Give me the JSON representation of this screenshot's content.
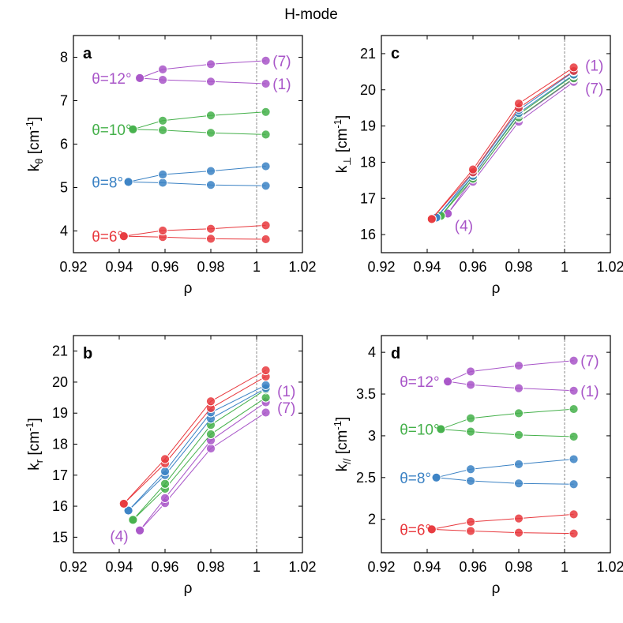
{
  "title": "H-mode",
  "colors": {
    "theta6": "#e8383d",
    "theta8": "#3b82c4",
    "theta10": "#44b04a",
    "theta12": "#a855c8",
    "axis": "#000000",
    "ref_line": "#888888"
  },
  "chart_data": [
    {
      "panel": "a",
      "type": "line",
      "xlabel": "ρ",
      "ylabel_main": "k",
      "ylabel_sub": "θ",
      "ylabel_tail": " [cm",
      "ylabel_sup": "-1",
      "ylabel_end": "]",
      "xlim": [
        0.92,
        1.02
      ],
      "ylim": [
        3.5,
        8.5
      ],
      "xticks": [
        0.92,
        0.94,
        0.96,
        0.98,
        1,
        1.02
      ],
      "xtick_labels": [
        "0.92",
        "0.94",
        "0.96",
        "0.98",
        "1",
        "1.02"
      ],
      "yticks": [
        4,
        5,
        6,
        7,
        8
      ],
      "ytick_labels": [
        "4",
        "5",
        "6",
        "7",
        "8"
      ],
      "ref_x": 1.0,
      "series": [
        {
          "name": "θ=6° (1)",
          "color": "theta6",
          "x": [
            0.942,
            0.959,
            0.98,
            1.004
          ],
          "y": [
            3.88,
            3.86,
            3.82,
            3.81
          ]
        },
        {
          "name": "θ=6° (7)",
          "color": "theta6",
          "x": [
            0.942,
            0.959,
            0.98,
            1.004
          ],
          "y": [
            3.88,
            4.01,
            4.05,
            4.13
          ]
        },
        {
          "name": "θ=8° (1)",
          "color": "theta8",
          "x": [
            0.944,
            0.959,
            0.98,
            1.004
          ],
          "y": [
            5.13,
            5.11,
            5.06,
            5.04
          ]
        },
        {
          "name": "θ=8° (7)",
          "color": "theta8",
          "x": [
            0.944,
            0.959,
            0.98,
            1.004
          ],
          "y": [
            5.13,
            5.3,
            5.38,
            5.49
          ]
        },
        {
          "name": "θ=10° (1)",
          "color": "theta10",
          "x": [
            0.946,
            0.959,
            0.98,
            1.004
          ],
          "y": [
            6.34,
            6.32,
            6.26,
            6.22
          ]
        },
        {
          "name": "θ=10° (7)",
          "color": "theta10",
          "x": [
            0.946,
            0.959,
            0.98,
            1.004
          ],
          "y": [
            6.34,
            6.54,
            6.66,
            6.74
          ]
        },
        {
          "name": "θ=12° (1)",
          "color": "theta12",
          "x": [
            0.949,
            0.959,
            0.98,
            1.004
          ],
          "y": [
            7.52,
            7.48,
            7.44,
            7.39
          ]
        },
        {
          "name": "θ=12° (7)",
          "color": "theta12",
          "x": [
            0.949,
            0.959,
            0.98,
            1.004
          ],
          "y": [
            7.52,
            7.72,
            7.84,
            7.92
          ]
        }
      ],
      "annotations": [
        {
          "text": "θ=6°",
          "color": "theta6",
          "at": [
            0.928,
            3.88
          ],
          "anchor": "start"
        },
        {
          "text": "θ=8°",
          "color": "theta8",
          "at": [
            0.928,
            5.13
          ],
          "anchor": "start"
        },
        {
          "text": "θ=10°",
          "color": "theta10",
          "at": [
            0.928,
            6.34
          ],
          "anchor": "start"
        },
        {
          "text": "θ=12°",
          "color": "theta12",
          "at": [
            0.928,
            7.52
          ],
          "anchor": "start"
        },
        {
          "text": "(7)",
          "color": "theta12",
          "at": [
            1.007,
            7.92
          ],
          "anchor": "start"
        },
        {
          "text": "(1)",
          "color": "theta12",
          "at": [
            1.007,
            7.39
          ],
          "anchor": "start"
        }
      ]
    },
    {
      "panel": "c",
      "type": "line",
      "xlabel": "ρ",
      "ylabel_main": "k",
      "ylabel_sub": "⊥",
      "ylabel_tail": " [cm",
      "ylabel_sup": "-1",
      "ylabel_end": "]",
      "xlim": [
        0.92,
        1.02
      ],
      "ylim": [
        15.5,
        21.5
      ],
      "xticks": [
        0.92,
        0.94,
        0.96,
        0.98,
        1,
        1.02
      ],
      "xtick_labels": [
        "0.92",
        "0.94",
        "0.96",
        "0.98",
        "1",
        "1.02"
      ],
      "yticks": [
        16,
        17,
        18,
        19,
        20,
        21
      ],
      "ytick_labels": [
        "16",
        "17",
        "18",
        "19",
        "20",
        "21"
      ],
      "ref_x": 1.0,
      "series": [
        {
          "name": "θ=12° (7)",
          "color": "theta12",
          "x": [
            0.949,
            0.96,
            0.98,
            1.004
          ],
          "y": [
            16.58,
            17.46,
            19.12,
            20.22
          ]
        },
        {
          "name": "θ=12° (1)",
          "color": "theta12",
          "x": [
            0.949,
            0.96,
            0.98,
            1.004
          ],
          "y": [
            16.58,
            17.56,
            19.22,
            20.3
          ]
        },
        {
          "name": "θ=10° (7)",
          "color": "theta10",
          "x": [
            0.946,
            0.96,
            0.98,
            1.004
          ],
          "y": [
            16.52,
            17.54,
            19.24,
            20.32
          ]
        },
        {
          "name": "θ=10° (1)",
          "color": "theta10",
          "x": [
            0.946,
            0.96,
            0.98,
            1.004
          ],
          "y": [
            16.52,
            17.62,
            19.32,
            20.4
          ]
        },
        {
          "name": "θ=8° (7)",
          "color": "theta8",
          "x": [
            0.944,
            0.96,
            0.98,
            1.004
          ],
          "y": [
            16.47,
            17.62,
            19.36,
            20.42
          ]
        },
        {
          "name": "θ=8° (1)",
          "color": "theta8",
          "x": [
            0.944,
            0.96,
            0.98,
            1.004
          ],
          "y": [
            16.47,
            17.7,
            19.44,
            20.5
          ]
        },
        {
          "name": "θ=6° (7)",
          "color": "theta6",
          "x": [
            0.942,
            0.96,
            0.98,
            1.004
          ],
          "y": [
            16.43,
            17.72,
            19.5,
            20.52
          ]
        },
        {
          "name": "θ=6° (1)",
          "color": "theta6",
          "x": [
            0.942,
            0.96,
            0.98,
            1.004
          ],
          "y": [
            16.43,
            17.8,
            19.62,
            20.62
          ]
        }
      ],
      "annotations": [
        {
          "text": "(1)",
          "color": "theta12",
          "at": [
            1.009,
            20.68
          ],
          "anchor": "start"
        },
        {
          "text": "(7)",
          "color": "theta12",
          "at": [
            1.009,
            20.05
          ],
          "anchor": "start"
        },
        {
          "text": "(4)",
          "color": "theta12",
          "at": [
            0.952,
            16.25
          ],
          "anchor": "start"
        }
      ]
    },
    {
      "panel": "b",
      "type": "line",
      "xlabel": "ρ",
      "ylabel_main": "k",
      "ylabel_sub": "r",
      "ylabel_tail": " [cm",
      "ylabel_sup": "-1",
      "ylabel_end": "]",
      "xlim": [
        0.92,
        1.02
      ],
      "ylim": [
        14.5,
        21.5
      ],
      "xticks": [
        0.92,
        0.94,
        0.96,
        0.98,
        1,
        1.02
      ],
      "xtick_labels": [
        "0.92",
        "0.94",
        "0.96",
        "0.98",
        "1",
        "1.02"
      ],
      "yticks": [
        15,
        16,
        17,
        18,
        19,
        20,
        21
      ],
      "ytick_labels": [
        "15",
        "16",
        "17",
        "18",
        "19",
        "20",
        "21"
      ],
      "ref_x": 1.0,
      "series": [
        {
          "name": "θ=12° (7)",
          "color": "theta12",
          "x": [
            0.949,
            0.96,
            0.98,
            1.004
          ],
          "y": [
            15.22,
            16.1,
            17.86,
            19.02
          ]
        },
        {
          "name": "θ=12° (1)",
          "color": "theta12",
          "x": [
            0.949,
            0.96,
            0.98,
            1.004
          ],
          "y": [
            15.22,
            16.26,
            18.12,
            19.35
          ]
        },
        {
          "name": "θ=10° (7)",
          "color": "theta10",
          "x": [
            0.946,
            0.96,
            0.98,
            1.004
          ],
          "y": [
            15.56,
            16.56,
            18.32,
            19.5
          ]
        },
        {
          "name": "θ=10° (1)",
          "color": "theta10",
          "x": [
            0.946,
            0.96,
            0.98,
            1.004
          ],
          "y": [
            15.56,
            16.72,
            18.62,
            19.76
          ]
        },
        {
          "name": "θ=8° (7)",
          "color": "theta8",
          "x": [
            0.944,
            0.96,
            0.98,
            1.004
          ],
          "y": [
            15.86,
            17.0,
            18.82,
            19.8
          ]
        },
        {
          "name": "θ=8° (1)",
          "color": "theta8",
          "x": [
            0.944,
            0.96,
            0.98,
            1.004
          ],
          "y": [
            15.86,
            17.12,
            19.02,
            19.9
          ]
        },
        {
          "name": "θ=6° (7)",
          "color": "theta6",
          "x": [
            0.942,
            0.96,
            0.98,
            1.004
          ],
          "y": [
            16.08,
            17.38,
            19.16,
            20.18
          ]
        },
        {
          "name": "θ=6° (1)",
          "color": "theta6",
          "x": [
            0.942,
            0.96,
            0.98,
            1.004
          ],
          "y": [
            16.08,
            17.52,
            19.38,
            20.38
          ]
        }
      ],
      "annotations": [
        {
          "text": "(1)",
          "color": "theta12",
          "at": [
            1.009,
            19.72
          ],
          "anchor": "start"
        },
        {
          "text": "(7)",
          "color": "theta12",
          "at": [
            1.009,
            19.18
          ],
          "anchor": "start"
        },
        {
          "text": "(4)",
          "color": "theta12",
          "at": [
            0.936,
            15.05
          ],
          "anchor": "start"
        }
      ]
    },
    {
      "panel": "d",
      "type": "line",
      "xlabel": "ρ",
      "ylabel_main": "k",
      "ylabel_sub": "//",
      "ylabel_tail": " [cm",
      "ylabel_sup": "-1",
      "ylabel_end": "]",
      "xlim": [
        0.92,
        1.02
      ],
      "ylim": [
        1.6,
        4.2
      ],
      "xticks": [
        0.92,
        0.94,
        0.96,
        0.98,
        1,
        1.02
      ],
      "xtick_labels": [
        "0.92",
        "0.94",
        "0.96",
        "0.98",
        "1",
        "1.02"
      ],
      "yticks": [
        2,
        2.5,
        3,
        3.5,
        4
      ],
      "ytick_labels": [
        "2",
        "2.5",
        "3",
        "3.5",
        "4"
      ],
      "ref_x": 1.0,
      "series": [
        {
          "name": "θ=6° (1)",
          "color": "theta6",
          "x": [
            0.942,
            0.959,
            0.98,
            1.004
          ],
          "y": [
            1.88,
            1.86,
            1.84,
            1.83
          ]
        },
        {
          "name": "θ=6° (7)",
          "color": "theta6",
          "x": [
            0.942,
            0.959,
            0.98,
            1.004
          ],
          "y": [
            1.88,
            1.97,
            2.01,
            2.06
          ]
        },
        {
          "name": "θ=8° (1)",
          "color": "theta8",
          "x": [
            0.944,
            0.959,
            0.98,
            1.004
          ],
          "y": [
            2.5,
            2.46,
            2.43,
            2.42
          ]
        },
        {
          "name": "θ=8° (7)",
          "color": "theta8",
          "x": [
            0.944,
            0.959,
            0.98,
            1.004
          ],
          "y": [
            2.5,
            2.6,
            2.66,
            2.72
          ]
        },
        {
          "name": "θ=10° (1)",
          "color": "theta10",
          "x": [
            0.946,
            0.959,
            0.98,
            1.004
          ],
          "y": [
            3.08,
            3.05,
            3.01,
            2.99
          ]
        },
        {
          "name": "θ=10° (7)",
          "color": "theta10",
          "x": [
            0.946,
            0.959,
            0.98,
            1.004
          ],
          "y": [
            3.08,
            3.21,
            3.27,
            3.32
          ]
        },
        {
          "name": "θ=12° (1)",
          "color": "theta12",
          "x": [
            0.949,
            0.959,
            0.98,
            1.004
          ],
          "y": [
            3.65,
            3.61,
            3.57,
            3.54
          ]
        },
        {
          "name": "θ=12° (7)",
          "color": "theta12",
          "x": [
            0.949,
            0.959,
            0.98,
            1.004
          ],
          "y": [
            3.65,
            3.77,
            3.84,
            3.9
          ]
        }
      ],
      "annotations": [
        {
          "text": "θ=6°",
          "color": "theta6",
          "at": [
            0.928,
            1.88
          ],
          "anchor": "start"
        },
        {
          "text": "θ=8°",
          "color": "theta8",
          "at": [
            0.928,
            2.5
          ],
          "anchor": "start"
        },
        {
          "text": "θ=10°",
          "color": "theta10",
          "at": [
            0.928,
            3.08
          ],
          "anchor": "start"
        },
        {
          "text": "θ=12°",
          "color": "theta12",
          "at": [
            0.928,
            3.65
          ],
          "anchor": "start"
        },
        {
          "text": "(7)",
          "color": "theta12",
          "at": [
            1.007,
            3.9
          ],
          "anchor": "start"
        },
        {
          "text": "(1)",
          "color": "theta12",
          "at": [
            1.007,
            3.54
          ],
          "anchor": "start"
        }
      ]
    }
  ]
}
